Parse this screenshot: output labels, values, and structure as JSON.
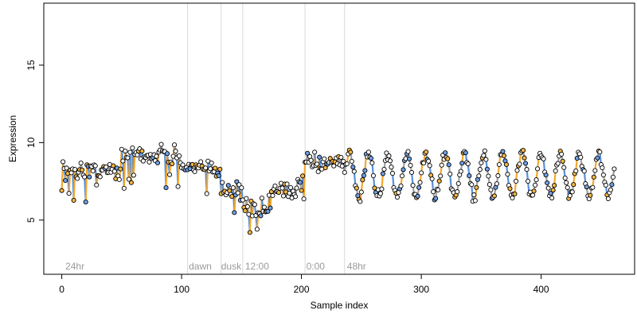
{
  "chart_data": {
    "type": "scatter",
    "xlabel": "Sample index",
    "ylabel": "Expression",
    "xlim": [
      -15,
      478
    ],
    "ylim": [
      1.5,
      19
    ],
    "x_ticks": [
      0,
      100,
      200,
      300,
      400
    ],
    "y_ticks": [
      5,
      10,
      15
    ],
    "grid": false,
    "legend": "none",
    "colors": {
      "line_gray": "#a0a0a0",
      "line_blue": "#5b8fd6",
      "line_orange": "#f0a830",
      "point_edge": "#000000",
      "point_light": "#ffffff",
      "point_orange": "#f5b642",
      "point_blue": "#6fa0e8",
      "vline": "#d9d9d9",
      "label_gray": "#9a9a9a"
    },
    "vlines": [
      105,
      133,
      151,
      203,
      236
    ],
    "region_labels": [
      {
        "text": "24hr",
        "x": 3
      },
      {
        "text": "dawn",
        "x": 106
      },
      {
        "text": "dusk",
        "x": 133
      },
      {
        "text": "12:00",
        "x": 153
      },
      {
        "text": "0:00",
        "x": 204
      },
      {
        "text": "48hr",
        "x": 238
      }
    ],
    "segments": [
      {
        "x0": 0,
        "x1": 50,
        "mean": 8.2,
        "noise": 0.45,
        "kind": "noisy"
      },
      {
        "x0": 50,
        "x1": 100,
        "mean": 9.2,
        "noise": 0.45,
        "kind": "noisy"
      },
      {
        "x0": 100,
        "x1": 133,
        "mean": 8.3,
        "noise": 0.35,
        "kind": "noisy"
      },
      {
        "x0": 133,
        "x1": 151,
        "mean": 6.9,
        "noise": 0.5,
        "kind": "noisy"
      },
      {
        "x0": 151,
        "x1": 175,
        "mean": 5.9,
        "noise": 0.7,
        "kind": "noisy"
      },
      {
        "x0": 175,
        "x1": 203,
        "mean": 7.0,
        "noise": 0.55,
        "kind": "noisy"
      },
      {
        "x0": 203,
        "x1": 236,
        "mean": 8.7,
        "noise": 0.35,
        "kind": "noisy"
      },
      {
        "x0": 236,
        "x1": 462,
        "mean": 7.9,
        "amp": 1.4,
        "period": 16,
        "kind": "wave"
      }
    ]
  }
}
